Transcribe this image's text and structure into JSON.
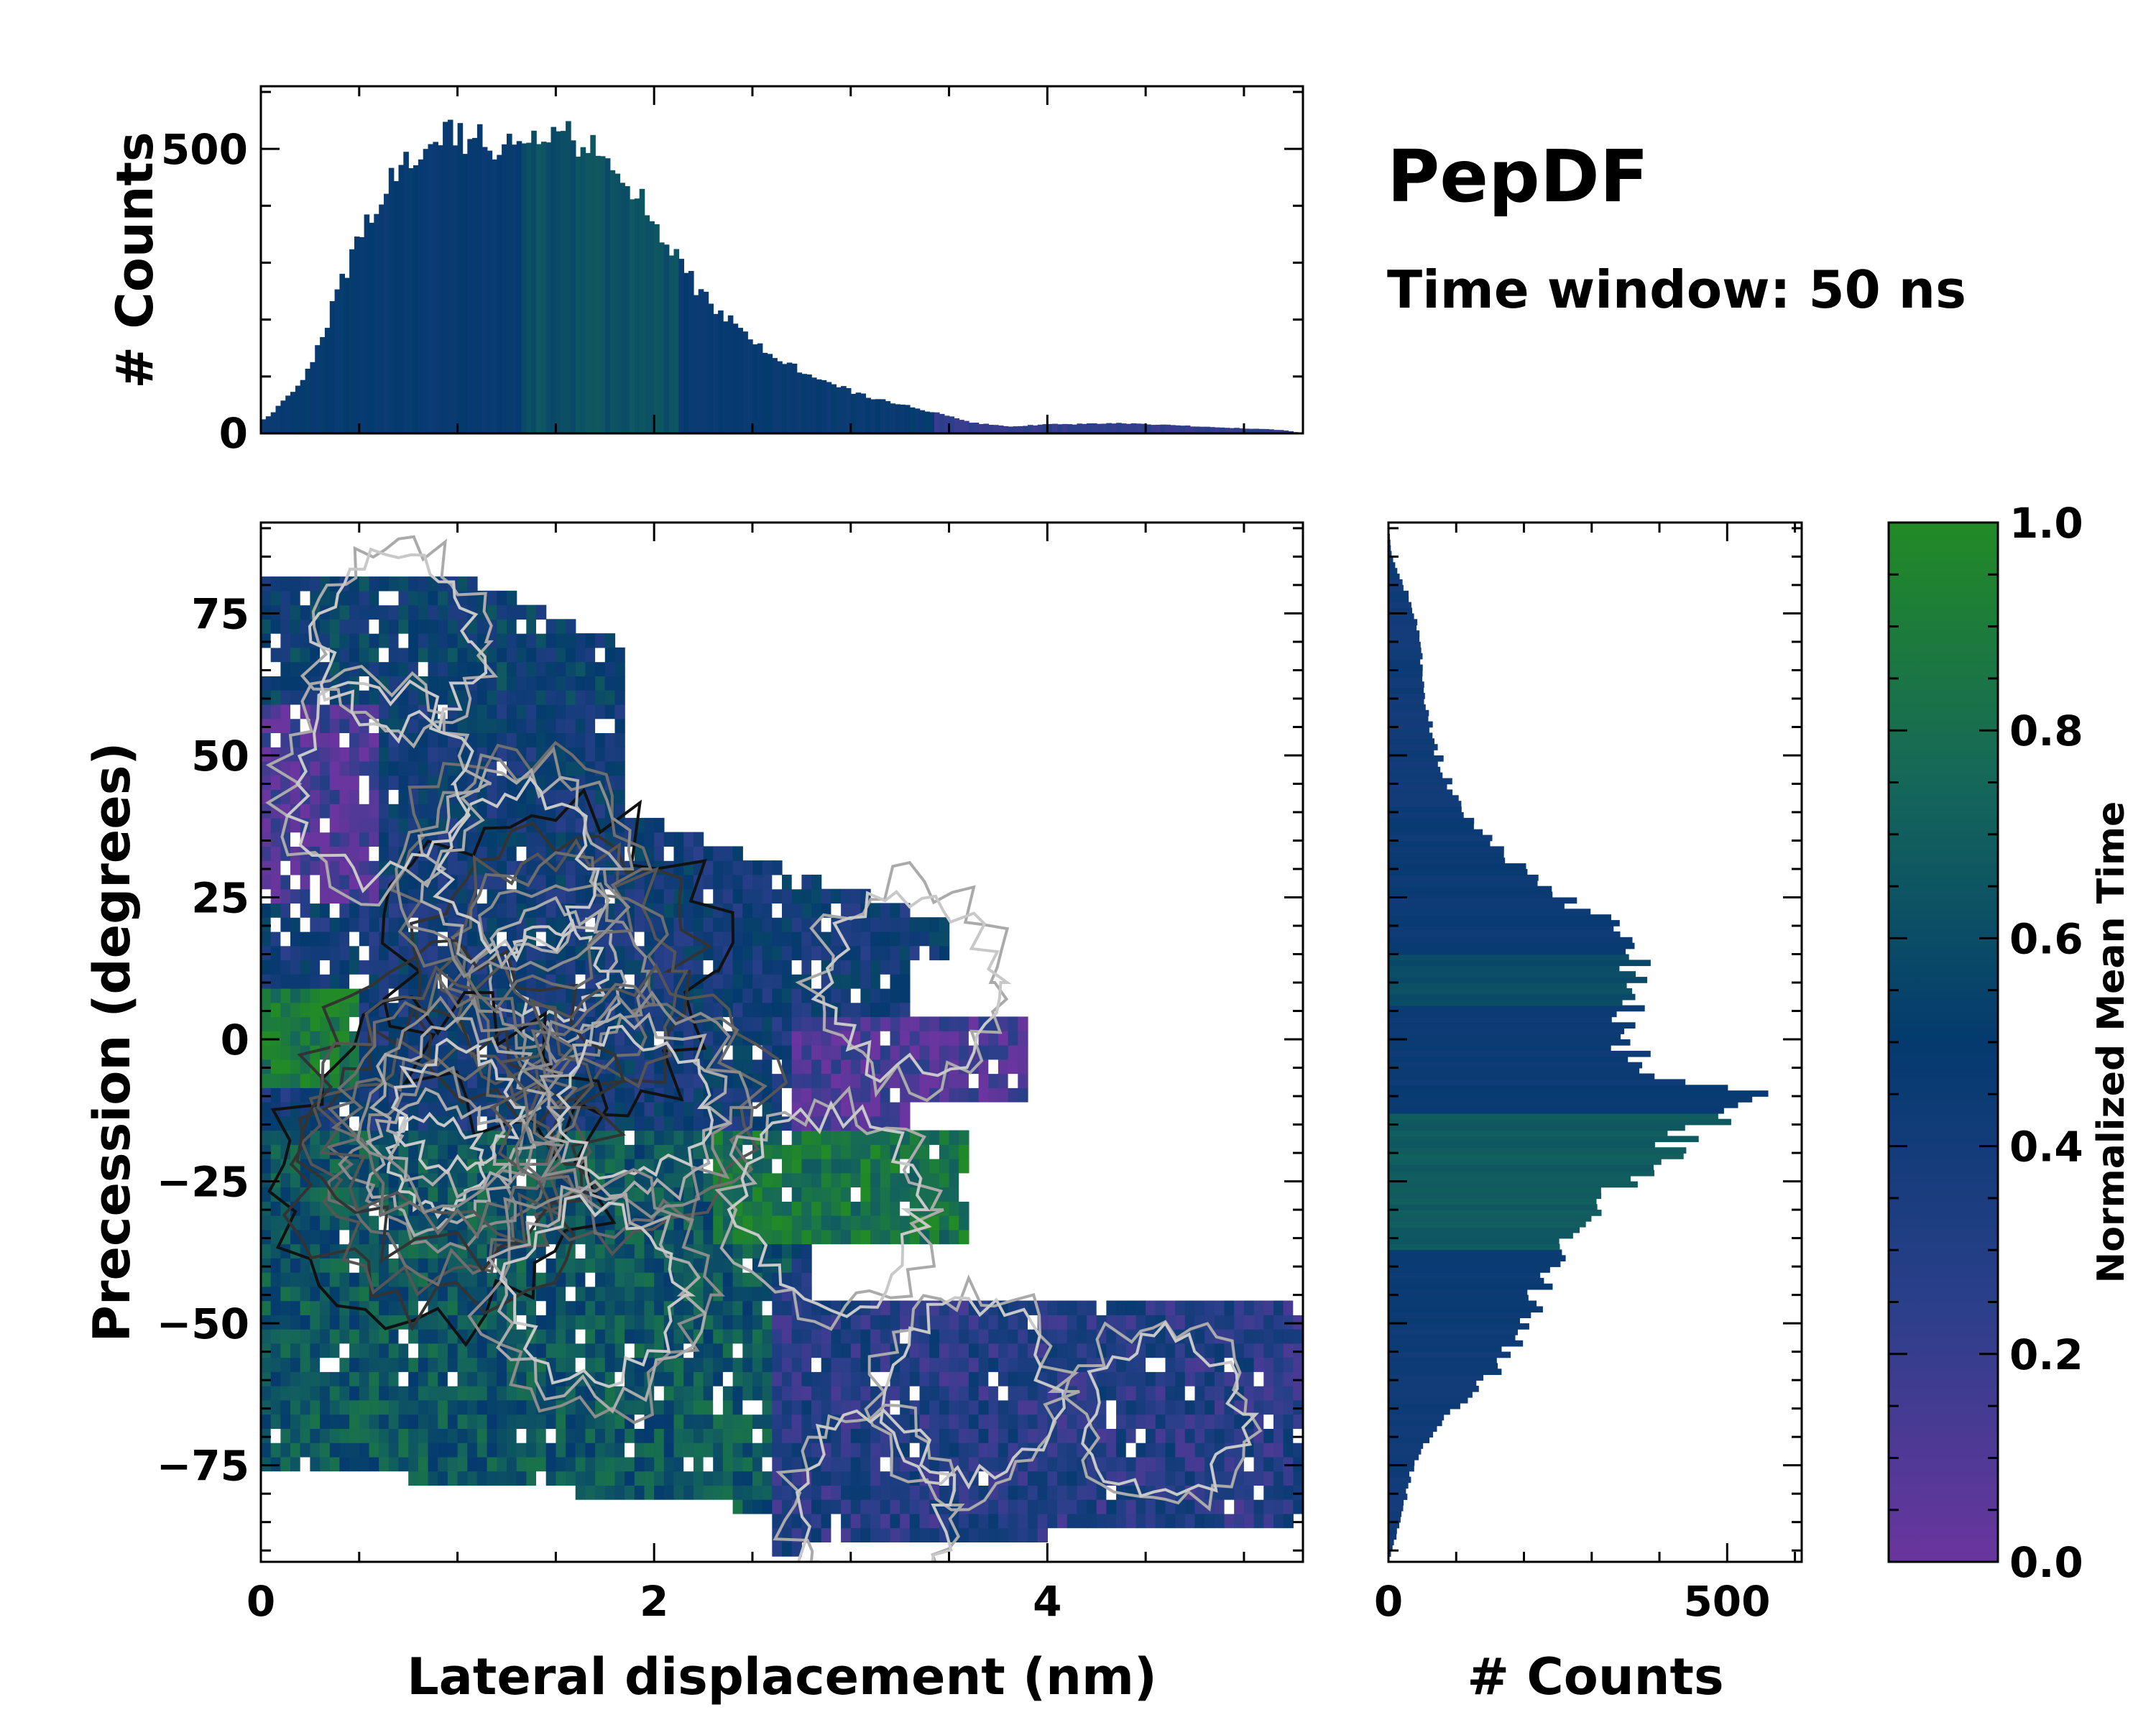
{
  "chart_data": {
    "type": "heatmap",
    "title": "PepDF",
    "subtitle": "Time window: 50 ns",
    "colors": {
      "low": "#6a359e",
      "mid_low": "#2a3f8a",
      "mid": "#043a6e",
      "mid_high": "#15675a",
      "high": "#228a26",
      "axis": "#000000"
    },
    "main": {
      "xlabel": "Lateral displacement (nm)",
      "ylabel": "Precession (degrees)",
      "xlim": [
        0,
        5.3
      ],
      "ylim": [
        -92,
        91
      ],
      "xticks": [
        0,
        2,
        4
      ],
      "xtick_labels": [
        "0",
        "2",
        "4"
      ],
      "yticks": [
        75,
        50,
        25,
        0,
        -25,
        -50,
        -75
      ],
      "ytick_labels": [
        "75",
        "50",
        "25",
        "0",
        "−25",
        "−50",
        "−75"
      ],
      "density_peaks": [
        {
          "x": 1.5,
          "y": 12,
          "strength": 1.0
        },
        {
          "x": 0.9,
          "y": -22,
          "strength": 1.0
        },
        {
          "x": 1.0,
          "y": -12,
          "strength": 0.85
        },
        {
          "x": 1.9,
          "y": -12,
          "strength": 0.7
        },
        {
          "x": 1.3,
          "y": 30,
          "strength": 0.55
        },
        {
          "x": 0.6,
          "y": 45,
          "strength": 0.35
        },
        {
          "x": 0.7,
          "y": 70,
          "strength": 0.25
        },
        {
          "x": 1.7,
          "y": -45,
          "strength": 0.45
        },
        {
          "x": 2.9,
          "y": -30,
          "strength": 0.35
        },
        {
          "x": 3.3,
          "y": 10,
          "strength": 0.3
        },
        {
          "x": 3.6,
          "y": -62,
          "strength": 0.3
        },
        {
          "x": 4.6,
          "y": -66,
          "strength": 0.22
        },
        {
          "x": 3.1,
          "y": -82,
          "strength": 0.22
        }
      ]
    },
    "top_histogram": {
      "ylabel": "# Counts",
      "ylim": [
        0,
        610
      ],
      "yticks": [
        0,
        500
      ],
      "ytick_labels": [
        "0",
        "500"
      ],
      "bin_width_nm": 0.025,
      "envelope": [
        {
          "x": 0.0,
          "count": 20
        },
        {
          "x": 0.1,
          "count": 50
        },
        {
          "x": 0.2,
          "count": 90
        },
        {
          "x": 0.3,
          "count": 160
        },
        {
          "x": 0.4,
          "count": 260
        },
        {
          "x": 0.5,
          "count": 350
        },
        {
          "x": 0.6,
          "count": 420
        },
        {
          "x": 0.7,
          "count": 480
        },
        {
          "x": 0.8,
          "count": 510
        },
        {
          "x": 0.9,
          "count": 525
        },
        {
          "x": 1.0,
          "count": 530
        },
        {
          "x": 1.1,
          "count": 520
        },
        {
          "x": 1.2,
          "count": 505
        },
        {
          "x": 1.3,
          "count": 510
        },
        {
          "x": 1.4,
          "count": 525
        },
        {
          "x": 1.5,
          "count": 535
        },
        {
          "x": 1.6,
          "count": 525
        },
        {
          "x": 1.7,
          "count": 505
        },
        {
          "x": 1.8,
          "count": 480
        },
        {
          "x": 1.9,
          "count": 430
        },
        {
          "x": 2.0,
          "count": 380
        },
        {
          "x": 2.1,
          "count": 320
        },
        {
          "x": 2.2,
          "count": 265
        },
        {
          "x": 2.3,
          "count": 230
        },
        {
          "x": 2.4,
          "count": 195
        },
        {
          "x": 2.5,
          "count": 165
        },
        {
          "x": 2.6,
          "count": 140
        },
        {
          "x": 2.8,
          "count": 100
        },
        {
          "x": 3.0,
          "count": 75
        },
        {
          "x": 3.2,
          "count": 55
        },
        {
          "x": 3.4,
          "count": 40
        },
        {
          "x": 3.6,
          "count": 20
        },
        {
          "x": 3.8,
          "count": 12
        },
        {
          "x": 4.0,
          "count": 16
        },
        {
          "x": 4.4,
          "count": 18
        },
        {
          "x": 4.8,
          "count": 12
        },
        {
          "x": 5.2,
          "count": 6
        },
        {
          "x": 5.3,
          "count": 0
        }
      ]
    },
    "right_histogram": {
      "xlabel": "# Counts",
      "xlim": [
        0,
        610
      ],
      "xticks": [
        0,
        500
      ],
      "xtick_labels": [
        "0",
        "500"
      ],
      "bin_width_deg": 1,
      "envelope": [
        {
          "y": 91,
          "count": 0
        },
        {
          "y": 85,
          "count": 5
        },
        {
          "y": 78,
          "count": 30
        },
        {
          "y": 70,
          "count": 50
        },
        {
          "y": 60,
          "count": 55
        },
        {
          "y": 50,
          "count": 75
        },
        {
          "y": 40,
          "count": 110
        },
        {
          "y": 32,
          "count": 180
        },
        {
          "y": 25,
          "count": 270
        },
        {
          "y": 20,
          "count": 330
        },
        {
          "y": 15,
          "count": 360
        },
        {
          "y": 10,
          "count": 385
        },
        {
          "y": 5,
          "count": 360
        },
        {
          "y": 0,
          "count": 350
        },
        {
          "y": -5,
          "count": 390
        },
        {
          "y": -8,
          "count": 470
        },
        {
          "y": -10,
          "count": 555
        },
        {
          "y": -13,
          "count": 500
        },
        {
          "y": -17,
          "count": 440
        },
        {
          "y": -22,
          "count": 400
        },
        {
          "y": -27,
          "count": 340
        },
        {
          "y": -32,
          "count": 300
        },
        {
          "y": -38,
          "count": 260
        },
        {
          "y": -45,
          "count": 225
        },
        {
          "y": -52,
          "count": 200
        },
        {
          "y": -58,
          "count": 165
        },
        {
          "y": -64,
          "count": 110
        },
        {
          "y": -70,
          "count": 60
        },
        {
          "y": -76,
          "count": 35
        },
        {
          "y": -84,
          "count": 20
        },
        {
          "y": -92,
          "count": 0
        }
      ]
    },
    "colorbar": {
      "label": "Normalized Mean Time",
      "lim": [
        0,
        1
      ],
      "ticks": [
        0.0,
        0.2,
        0.4,
        0.6,
        0.8,
        1.0
      ],
      "tick_labels": [
        "0.0",
        "0.2",
        "0.4",
        "0.6",
        "0.8",
        "1.0"
      ]
    }
  }
}
